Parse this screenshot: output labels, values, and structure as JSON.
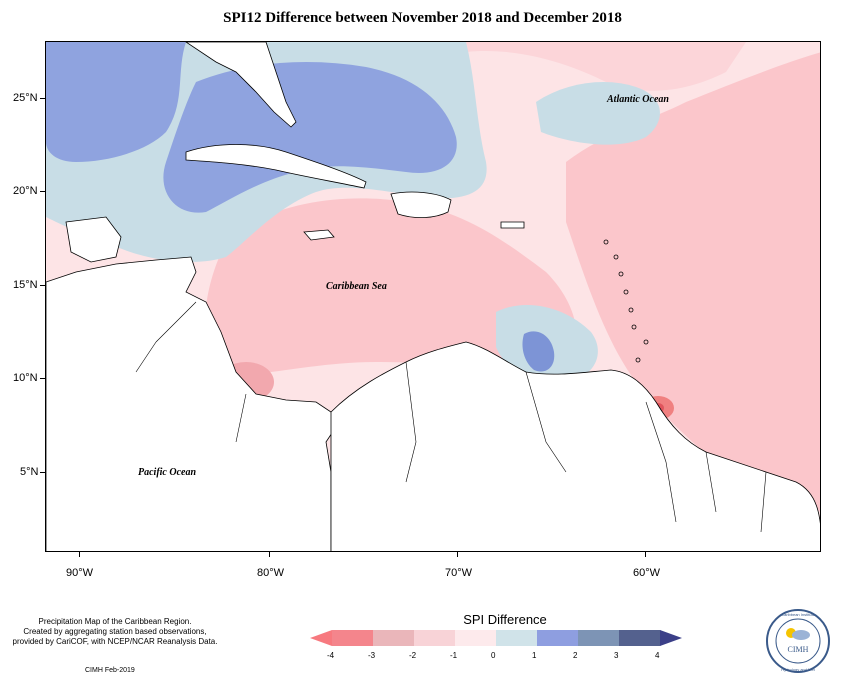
{
  "title": "SPI12 Difference between November 2018 and December 2018",
  "map": {
    "labels": {
      "atlantic": "Atlantic Ocean",
      "caribbean": "Caribbean Sea",
      "pacific": "Pacific Ocean"
    },
    "lat_ticks": [
      "25°N",
      "20°N",
      "15°N",
      "10°N",
      "5°N"
    ],
    "lon_ticks": [
      "90°W",
      "80°W",
      "70°W",
      "60°W"
    ],
    "colors": {
      "land": "#ffffff",
      "light_pink": "#fde4e6",
      "pink": "#fbc6cb",
      "red": "#f08080",
      "light_blue": "#c8dde6",
      "blue": "#8fa3df",
      "dark_blue": "#5b78bf",
      "navy": "#2e3f6d"
    }
  },
  "footnote": {
    "line1": "Precipitation Map of the Caribbean Region.",
    "line2": "Created by aggregating station based observations,",
    "line3": "provided by CariCOF, with NCEP/NCAR Reanalysis Data."
  },
  "credit": "CIMH Feb-2019",
  "legend": {
    "title": "SPI Difference",
    "tick_labels": [
      "-4",
      "-3",
      "-2",
      "-1",
      "0",
      "1",
      "2",
      "3",
      "4"
    ],
    "bins": [
      "#f4858c",
      "#eab6ba",
      "#f8d3d7",
      "#fdeaec",
      "#d0e3e9",
      "#8e9ee0",
      "#7d94b5",
      "#54618e"
    ],
    "low_color": "#f7797f",
    "high_color": "#3b3f88"
  },
  "logo": {
    "text_top": "Caribbean Institute",
    "text_bottom": "Hydrology and Met",
    "center": "CIMH"
  }
}
